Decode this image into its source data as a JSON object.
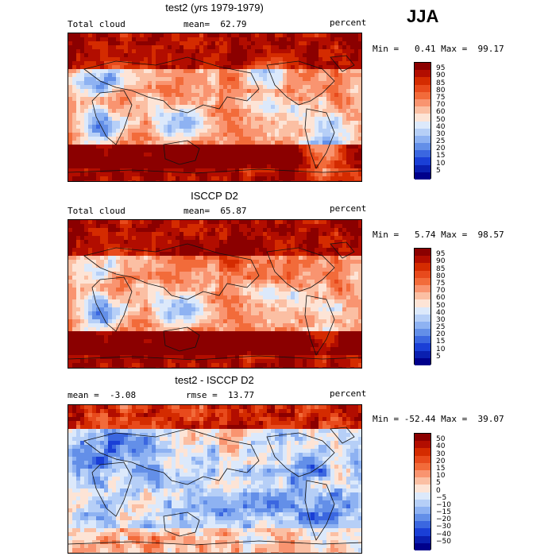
{
  "season": "JJA",
  "panels": [
    {
      "title": "test2 (yrs 1979-1979)",
      "left_label": "Total cloud",
      "mid_label": "mean=  62.79",
      "right_label": "percent",
      "minmax": "Min =   0.41 Max =  99.17",
      "stats": {
        "mean": 62.79,
        "min": 0.41,
        "max": 99.17
      },
      "colorbar": {
        "ticks": [
          "95",
          "90",
          "85",
          "80",
          "75",
          "70",
          "60",
          "50",
          "40",
          "30",
          "25",
          "20",
          "15",
          "10",
          "5"
        ],
        "colors": [
          "#8b0000",
          "#b20d00",
          "#d42b00",
          "#e84a1c",
          "#f26b3a",
          "#f99470",
          "#fbbfa3",
          "#fde4d6",
          "#dce9fb",
          "#b6cff7",
          "#8eb2f2",
          "#638fe8",
          "#3b67e0",
          "#1a3fd6",
          "#0a1fb0",
          "#00008b"
        ]
      },
      "field_kind": "obs_cloud"
    },
    {
      "title": "ISCCP D2",
      "left_label": "Total cloud",
      "mid_label": "mean=  65.87",
      "right_label": "percent",
      "minmax": "Min =   5.74 Max =  98.57",
      "stats": {
        "mean": 65.87,
        "min": 5.74,
        "max": 98.57
      },
      "colorbar": {
        "ticks": [
          "95",
          "90",
          "85",
          "80",
          "75",
          "70",
          "60",
          "50",
          "40",
          "30",
          "25",
          "20",
          "15",
          "10",
          "5"
        ],
        "colors": [
          "#8b0000",
          "#b20d00",
          "#d42b00",
          "#e84a1c",
          "#f26b3a",
          "#f99470",
          "#fbbfa3",
          "#fde4d6",
          "#dce9fb",
          "#b6cff7",
          "#8eb2f2",
          "#638fe8",
          "#3b67e0",
          "#1a3fd6",
          "#0a1fb0",
          "#00008b"
        ]
      },
      "field_kind": "isccp_cloud"
    },
    {
      "title": "test2 - ISCCP D2",
      "left_label": "mean =  -3.08",
      "mid_label": "rmse =  13.77",
      "right_label": "percent",
      "minmax": "Min = -52.44 Max =  39.07",
      "stats": {
        "mean": -3.08,
        "rmse": 13.77,
        "min": -52.44,
        "max": 39.07
      },
      "colorbar": {
        "ticks": [
          "50",
          "40",
          "30",
          "20",
          "15",
          "10",
          "5",
          "0",
          "−5",
          "−10",
          "−15",
          "−20",
          "−30",
          "−40",
          "−50"
        ],
        "colors": [
          "#8b0000",
          "#b20d00",
          "#d42b00",
          "#e84a1c",
          "#f26b3a",
          "#f99470",
          "#fbbfa3",
          "#fde4d6",
          "#dce9fb",
          "#b6cff7",
          "#8eb2f2",
          "#638fe8",
          "#3b67e0",
          "#1a3fd6",
          "#0a1fb0",
          "#00008b"
        ]
      },
      "field_kind": "difference"
    }
  ]
}
